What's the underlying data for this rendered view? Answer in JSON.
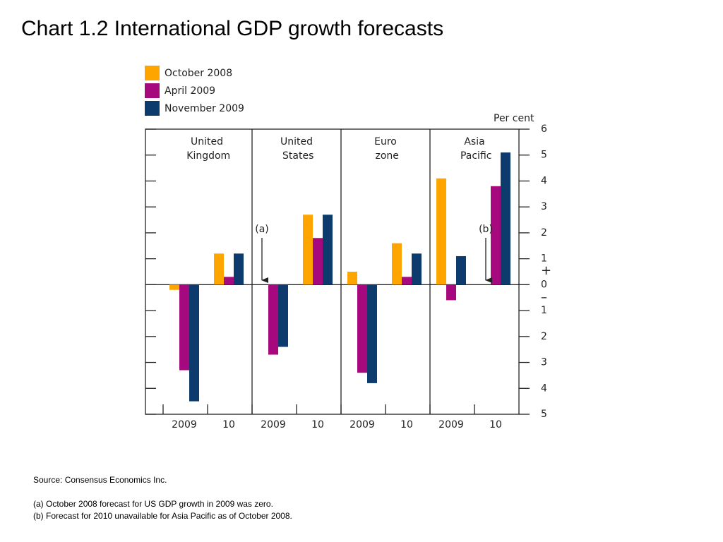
{
  "title": "Chart 1.2  International GDP growth forecasts",
  "chart_data": {
    "type": "bar",
    "y_label": "Per cent",
    "sign_labels": [
      "+",
      "–"
    ],
    "series": [
      {
        "name": "October 2008",
        "color": "#ffa500"
      },
      {
        "name": "April 2009",
        "color": "#a6097e"
      },
      {
        "name": "November 2009",
        "color": "#0d3b6e"
      }
    ],
    "panels": [
      {
        "title": "United Kingdom",
        "categories": [
          "2009",
          "10"
        ],
        "series": [
          {
            "values": [
              -0.2,
              1.2
            ]
          },
          {
            "values": [
              -3.3,
              0.3
            ]
          },
          {
            "values": [
              -4.5,
              1.2
            ]
          }
        ]
      },
      {
        "title": "United States",
        "categories": [
          "2009",
          "10"
        ],
        "series": [
          {
            "values": [
              0,
              2.7
            ]
          },
          {
            "values": [
              -2.7,
              1.8
            ]
          },
          {
            "values": [
              -2.4,
              2.7
            ]
          }
        ]
      },
      {
        "title": "Euro zone",
        "categories": [
          "2009",
          "10"
        ],
        "series": [
          {
            "values": [
              0.5,
              1.6
            ]
          },
          {
            "values": [
              -3.4,
              0.3
            ]
          },
          {
            "values": [
              -3.8,
              1.2
            ]
          }
        ]
      },
      {
        "title": "Asia Pacific",
        "categories": [
          "2009",
          "10"
        ],
        "series": [
          {
            "values": [
              4.1,
              null
            ]
          },
          {
            "values": [
              -0.6,
              3.8
            ]
          },
          {
            "values": [
              1.1,
              5.1
            ]
          }
        ]
      }
    ],
    "ylim": [
      -5,
      6
    ],
    "yticks": [
      {
        "value": -5,
        "label": "5"
      },
      {
        "value": -4,
        "label": "4"
      },
      {
        "value": -3,
        "label": "3"
      },
      {
        "value": -2,
        "label": "2"
      },
      {
        "value": -1,
        "label": "1"
      },
      0,
      1,
      2,
      3,
      4,
      5,
      6
    ],
    "annotations": [
      "(a)",
      "(b)"
    ]
  },
  "notes": {
    "source": "Source:  Consensus Economics Inc.",
    "footnotes": [
      "(a)  October 2008 forecast for US GDP growth in 2009 was zero.",
      "(b)  Forecast for 2010 unavailable for Asia Pacific as of October 2008."
    ]
  }
}
